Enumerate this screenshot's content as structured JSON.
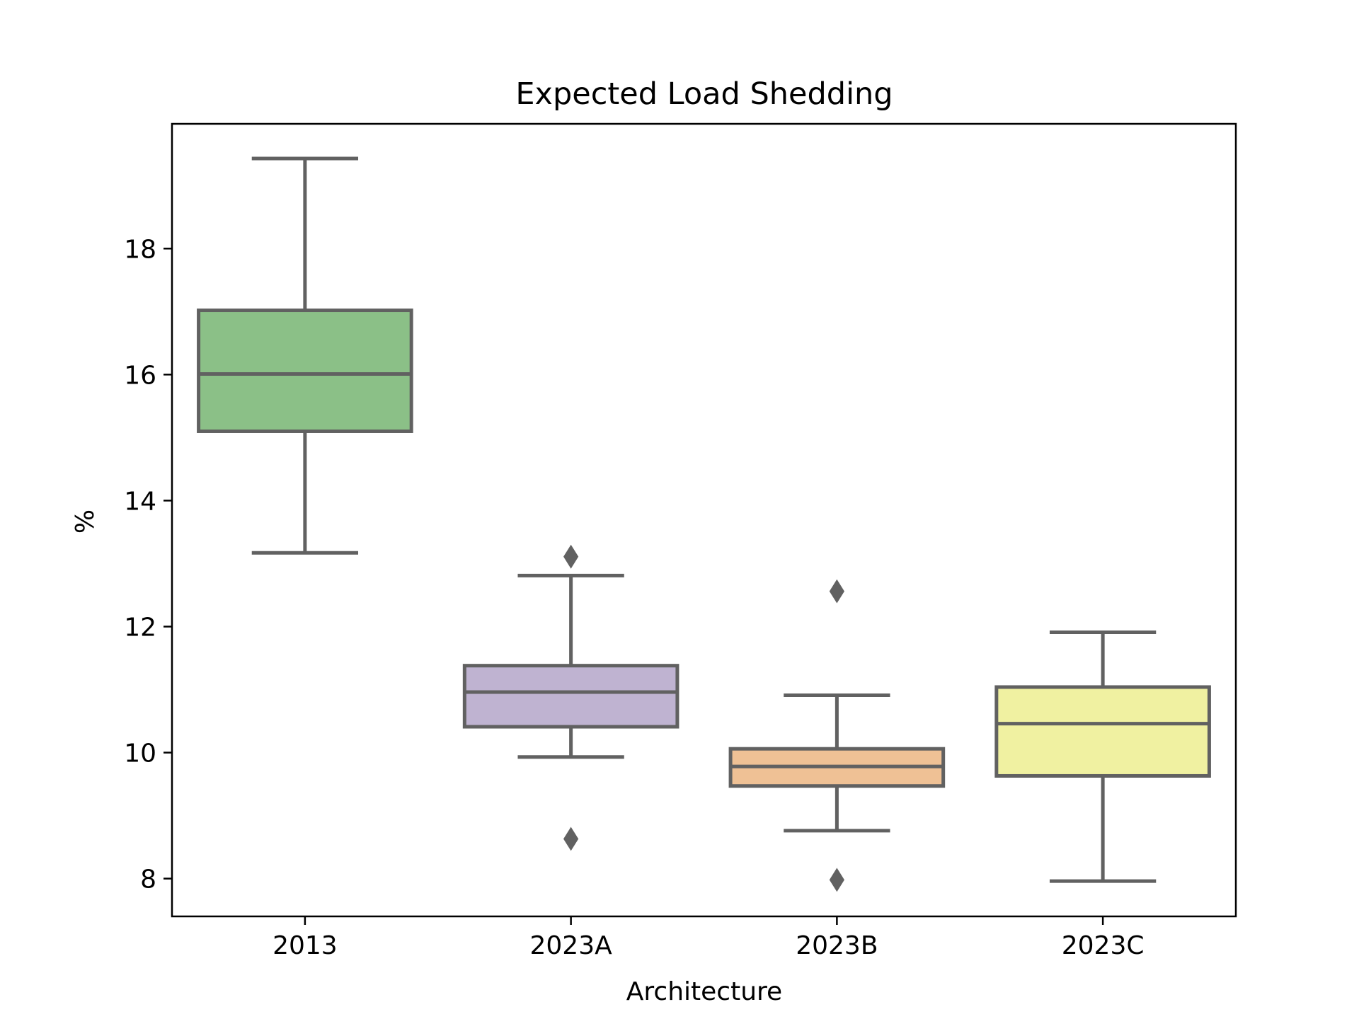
{
  "chart_data": {
    "type": "box",
    "title": "Expected Load Shedding",
    "xlabel": "Architecture",
    "ylabel": "%",
    "ylim": [
      7.4,
      19.98
    ],
    "yticks": [
      8,
      10,
      12,
      14,
      16,
      18
    ],
    "ytick_labels": [
      "8",
      "10",
      "12",
      "14",
      "16",
      "18"
    ],
    "grid": false,
    "categories": [
      "2013",
      "2023A",
      "2023B",
      "2023C"
    ],
    "boxes": [
      {
        "category": "2013",
        "whisker_low": 13.17,
        "q1": 15.1,
        "median": 16.01,
        "q3": 17.02,
        "whisker_high": 19.43,
        "outliers": [],
        "color": "#8bc087"
      },
      {
        "category": "2023A",
        "whisker_low": 9.93,
        "q1": 10.41,
        "median": 10.96,
        "q3": 11.38,
        "whisker_high": 12.81,
        "outliers": [
          13.11,
          8.63
        ],
        "color": "#bfb3d1"
      },
      {
        "category": "2023B",
        "whisker_low": 8.76,
        "q1": 9.47,
        "median": 9.78,
        "q3": 10.06,
        "whisker_high": 10.91,
        "outliers": [
          12.56,
          7.98
        ],
        "color": "#efc195"
      },
      {
        "category": "2023C",
        "whisker_low": 7.96,
        "q1": 9.63,
        "median": 10.46,
        "q3": 11.04,
        "whisker_high": 11.91,
        "outliers": [],
        "color": "#f0f1a1"
      }
    ],
    "line_color": "#616161"
  }
}
